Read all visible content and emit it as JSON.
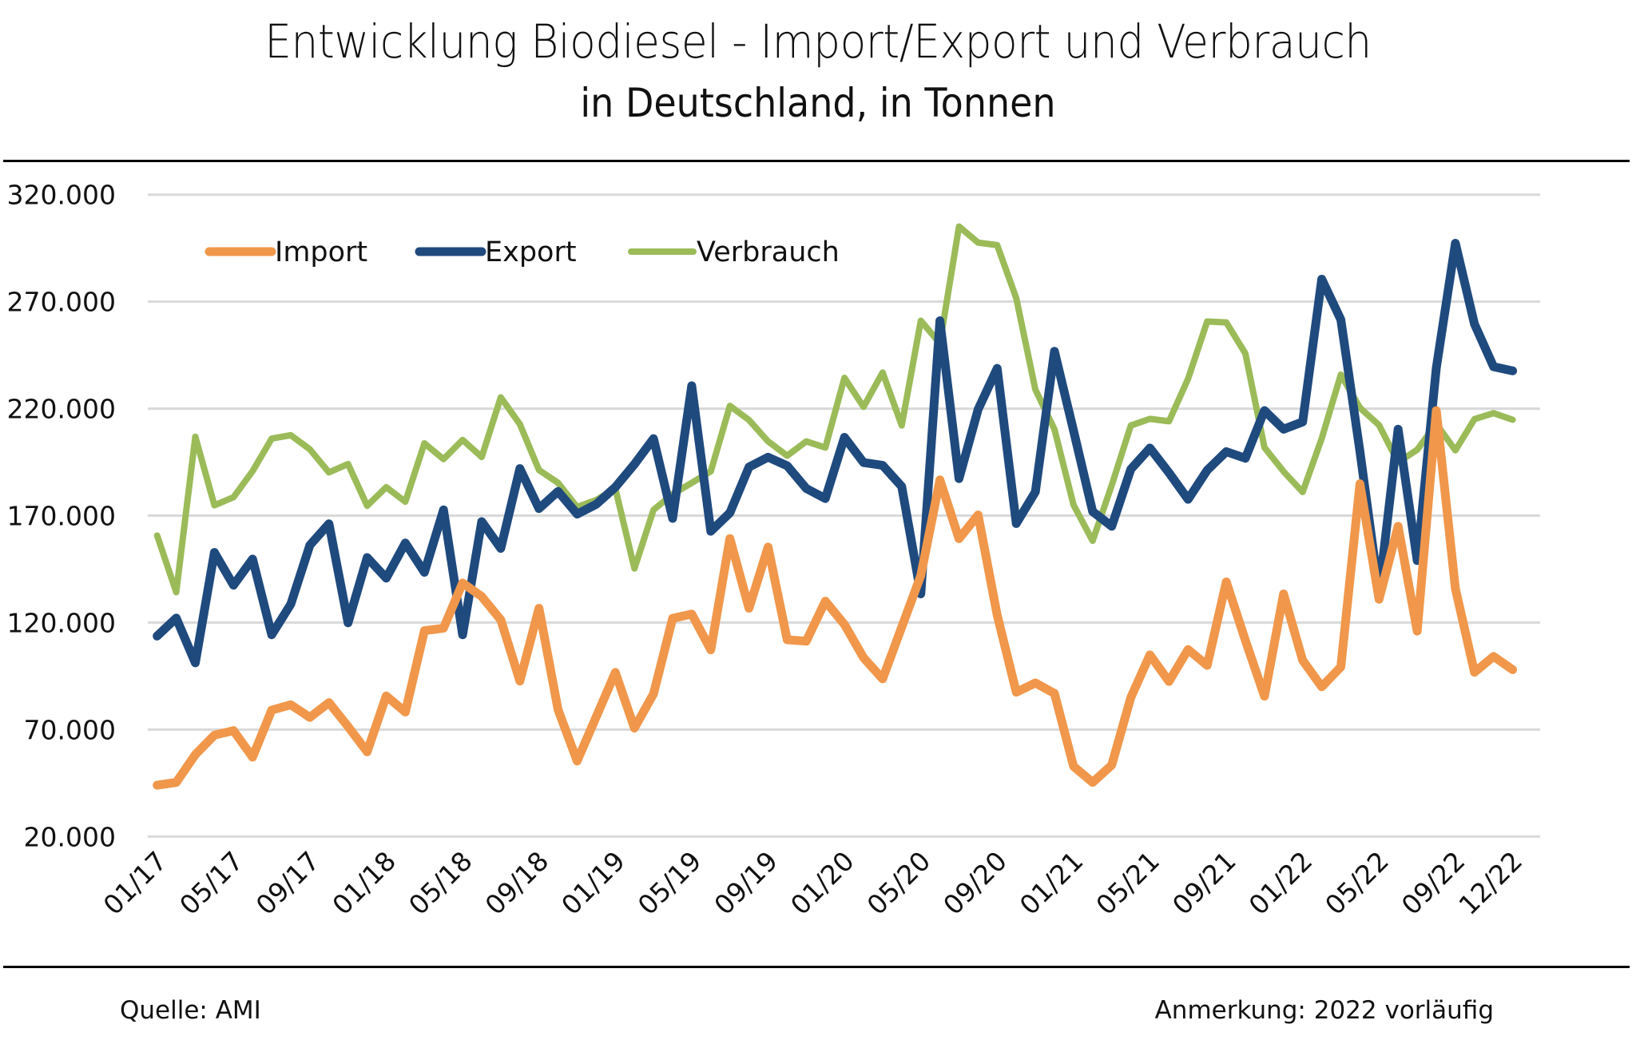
{
  "chart_data": {
    "type": "line",
    "title": "Entwicklung Biodiesel - Import/Export und Verbrauch",
    "subtitle": "in Deutschland, in Tonnen",
    "xlabel": "",
    "ylabel": "",
    "ylim": [
      20000,
      320000
    ],
    "yticks": [
      20000,
      70000,
      120000,
      170000,
      220000,
      270000,
      320000
    ],
    "ytick_labels": [
      "20.000",
      "70.000",
      "120.000",
      "170.000",
      "220.000",
      "270.000",
      "320.000"
    ],
    "grid": true,
    "legend_position": "top-left",
    "x": [
      "01/17",
      "02/17",
      "03/17",
      "04/17",
      "05/17",
      "06/17",
      "07/17",
      "08/17",
      "09/17",
      "10/17",
      "11/17",
      "12/17",
      "01/18",
      "02/18",
      "03/18",
      "04/18",
      "05/18",
      "06/18",
      "07/18",
      "08/18",
      "09/18",
      "10/18",
      "11/18",
      "12/18",
      "01/19",
      "02/19",
      "03/19",
      "04/19",
      "05/19",
      "06/19",
      "07/19",
      "08/19",
      "09/19",
      "10/19",
      "11/19",
      "12/19",
      "01/20",
      "02/20",
      "03/20",
      "04/20",
      "05/20",
      "06/20",
      "07/20",
      "08/20",
      "09/20",
      "10/20",
      "11/20",
      "12/20",
      "01/21",
      "02/21",
      "03/21",
      "04/21",
      "05/21",
      "06/21",
      "07/21",
      "08/21",
      "09/21",
      "10/21",
      "11/21",
      "12/21",
      "01/22",
      "02/22",
      "03/22",
      "04/22",
      "05/22",
      "06/22",
      "07/22",
      "08/22",
      "09/22",
      "10/22",
      "11/22",
      "12/22"
    ],
    "xtick_labels": [
      "01/17",
      "05/17",
      "09/17",
      "01/18",
      "05/18",
      "09/18",
      "01/19",
      "05/19",
      "09/19",
      "01/20",
      "05/20",
      "09/20",
      "01/21",
      "05/21",
      "09/21",
      "01/22",
      "05/22",
      "09/22",
      "12/22"
    ],
    "series": [
      {
        "name": "Import",
        "color": "#F0974B",
        "values": [
          44000,
          45300,
          58300,
          67400,
          69500,
          57100,
          79100,
          81600,
          75700,
          82600,
          71400,
          59600,
          85700,
          78200,
          116200,
          117400,
          138500,
          132200,
          121300,
          92700,
          126700,
          79300,
          55300,
          76000,
          96700,
          70700,
          86700,
          122000,
          124000,
          107300,
          159300,
          126700,
          155300,
          112000,
          111300,
          130000,
          119100,
          103600,
          93700,
          117900,
          142000,
          186700,
          159200,
          170300,
          123500,
          87500,
          91800,
          86900,
          52800,
          45300,
          53400,
          85000,
          104900,
          92500,
          107400,
          100000,
          139000,
          111700,
          85600,
          133400,
          102400,
          90000,
          99300,
          184900,
          130900,
          165000,
          116000,
          219100,
          135900,
          96800,
          104200,
          98000
        ]
      },
      {
        "name": "Export",
        "color": "#1F4A7E",
        "values": [
          113700,
          122100,
          101200,
          152800,
          137500,
          149700,
          114300,
          128600,
          156200,
          166200,
          119900,
          150400,
          140800,
          157200,
          143500,
          172700,
          114300,
          167200,
          154700,
          192000,
          173300,
          181300,
          170700,
          175300,
          183300,
          194000,
          206000,
          168700,
          230700,
          162700,
          171300,
          192700,
          197300,
          193300,
          182700,
          178000,
          206600,
          194800,
          193500,
          183600,
          133400,
          261100,
          187300,
          219600,
          238800,
          166300,
          181100,
          246800,
          209700,
          171900,
          165000,
          191700,
          201600,
          190000,
          177600,
          191200,
          199900,
          196800,
          219100,
          210400,
          213800,
          280500,
          261600,
          200000,
          134100,
          210400,
          149000,
          239000,
          297300,
          259500,
          239600,
          237700
        ]
      },
      {
        "name": "Verbrauch",
        "color": "#9BBB59",
        "values": [
          160700,
          134200,
          206900,
          174800,
          178600,
          190800,
          206000,
          207600,
          201000,
          190200,
          194100,
          174600,
          183300,
          176500,
          203800,
          196400,
          205400,
          197400,
          225300,
          212700,
          191300,
          185300,
          174000,
          177300,
          182700,
          145300,
          172700,
          180000,
          185300,
          190700,
          221300,
          214700,
          204700,
          198000,
          204700,
          201800,
          234400,
          220800,
          236900,
          212100,
          261100,
          250500,
          305100,
          297600,
          296400,
          271600,
          228900,
          210300,
          175000,
          158200,
          184200,
          212100,
          215200,
          214100,
          234000,
          260700,
          260300,
          245800,
          201800,
          190600,
          181000,
          206100,
          235900,
          220400,
          212300,
          194900,
          200800,
          212900,
          200500,
          215100,
          217900,
          214800
        ]
      }
    ]
  },
  "footer": {
    "source": "Quelle:  AMI",
    "note": "Anmerkung: 2022 vorläufig"
  }
}
